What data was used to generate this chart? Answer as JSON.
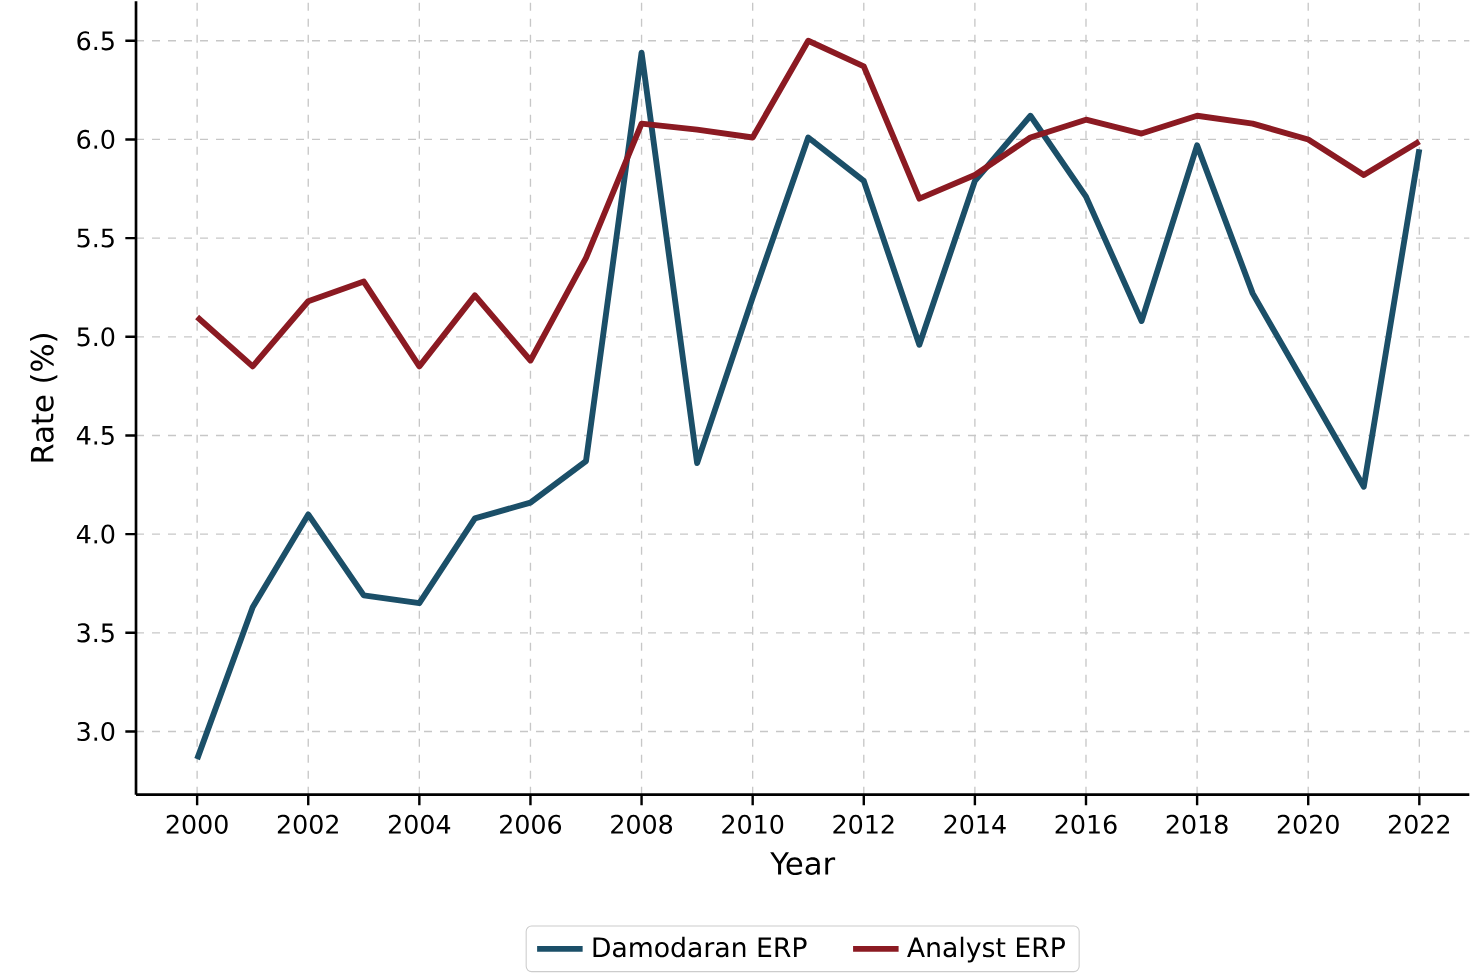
{
  "chart_data": {
    "type": "line",
    "xlabel": "Year",
    "ylabel": "Rate (%)",
    "x": [
      2000,
      2001,
      2002,
      2003,
      2004,
      2005,
      2006,
      2007,
      2008,
      2009,
      2010,
      2011,
      2012,
      2013,
      2014,
      2015,
      2016,
      2017,
      2018,
      2019,
      2020,
      2021,
      2022
    ],
    "series": [
      {
        "name": "Damodaran ERP",
        "color": "#1b4f68",
        "values": [
          2.86,
          3.63,
          4.1,
          3.69,
          3.65,
          4.08,
          4.16,
          4.37,
          6.44,
          4.36,
          5.2,
          6.01,
          5.79,
          4.96,
          5.79,
          6.12,
          5.71,
          5.08,
          5.97,
          5.22,
          4.73,
          4.24,
          5.95
        ]
      },
      {
        "name": "Analyst ERP",
        "color": "#8b1a22",
        "values": [
          5.1,
          4.85,
          5.18,
          5.28,
          4.85,
          5.21,
          4.88,
          5.4,
          6.08,
          6.05,
          6.01,
          6.5,
          6.37,
          5.7,
          5.82,
          6.01,
          6.1,
          6.03,
          6.12,
          6.08,
          6.0,
          5.82,
          5.99
        ]
      }
    ],
    "xlim": [
      1998.9,
      2022.9
    ],
    "ylim": [
      2.68,
      6.7
    ],
    "xticks": [
      2000,
      2002,
      2004,
      2006,
      2008,
      2010,
      2012,
      2014,
      2016,
      2018,
      2020,
      2022
    ],
    "yticks": [
      {
        "value": 3,
        "label": "3.0"
      },
      3.5,
      {
        "value": 4,
        "label": "4.0"
      },
      4.5,
      {
        "value": 5,
        "label": "5.0"
      },
      5.5,
      {
        "value": 6,
        "label": "6.0"
      },
      6.5
    ],
    "grid": true,
    "legend": "bottom",
    "line_style": "solid",
    "marker": "none"
  }
}
